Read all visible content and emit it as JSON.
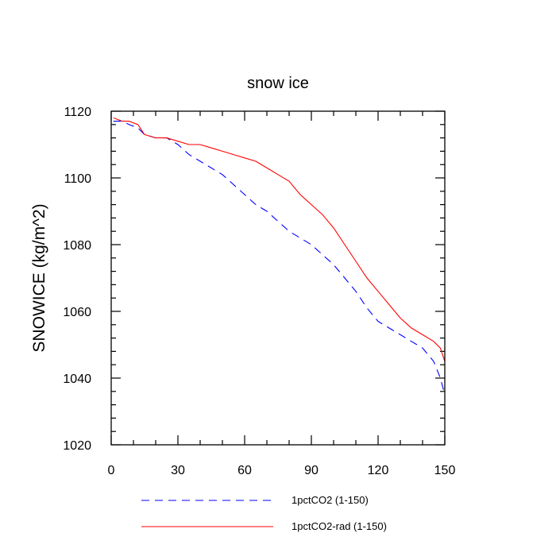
{
  "chart_data": {
    "type": "line",
    "title": "snow ice",
    "xlabel": "",
    "ylabel": "SNOWICE  (kg/m^2)",
    "xlim": [
      0,
      150
    ],
    "ylim": [
      1020,
      1120
    ],
    "xticks": [
      0,
      30,
      60,
      90,
      120,
      150
    ],
    "yticks": [
      1020,
      1040,
      1060,
      1080,
      1100,
      1120
    ],
    "grid": false,
    "legend_position": "bottom",
    "series": [
      {
        "name": "1pctCO2 (1-150)",
        "color": "#0000ff",
        "dash": "dashed",
        "x": [
          1,
          5,
          8,
          12,
          15,
          20,
          25,
          30,
          35,
          40,
          45,
          50,
          55,
          60,
          65,
          70,
          75,
          80,
          85,
          90,
          95,
          100,
          105,
          110,
          115,
          120,
          125,
          130,
          135,
          140,
          145,
          148,
          150
        ],
        "y": [
          1117,
          1117,
          1116,
          1115,
          1113,
          1112,
          1112,
          1110,
          1107,
          1105,
          1103,
          1101,
          1098,
          1095,
          1092,
          1090,
          1087,
          1084,
          1082,
          1080,
          1077,
          1074,
          1070,
          1066,
          1061,
          1057,
          1055,
          1053,
          1051,
          1049,
          1045,
          1040,
          1035
        ]
      },
      {
        "name": "1pctCO2-rad (1-150)",
        "color": "#ff0000",
        "dash": "solid",
        "x": [
          1,
          5,
          8,
          12,
          15,
          20,
          25,
          30,
          35,
          40,
          45,
          50,
          55,
          60,
          65,
          70,
          75,
          80,
          85,
          90,
          95,
          100,
          105,
          110,
          115,
          120,
          125,
          130,
          135,
          140,
          145,
          148,
          150
        ],
        "y": [
          1118,
          1117,
          1117,
          1116,
          1113,
          1112,
          1112,
          1111,
          1110,
          1110,
          1109,
          1108,
          1107,
          1106,
          1105,
          1103,
          1101,
          1099,
          1095,
          1092,
          1089,
          1085,
          1080,
          1075,
          1070,
          1066,
          1062,
          1058,
          1055,
          1053,
          1051,
          1049,
          1045
        ]
      }
    ]
  }
}
